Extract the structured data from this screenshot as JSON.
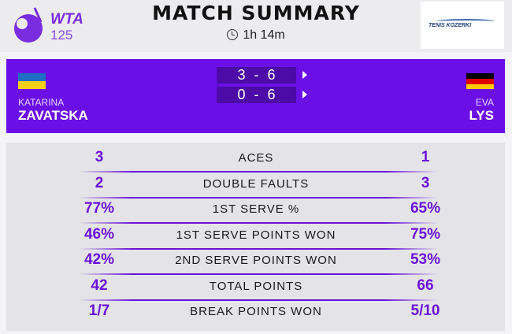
{
  "header": {
    "logo_text": "WTA",
    "logo_tier": "125",
    "title": "MATCH SUMMARY",
    "duration": "1h 14m",
    "clock_icon": "clock-icon",
    "sponsor_logo_text": "TENIS KOZERKI"
  },
  "colors": {
    "accent": "#6a10e6",
    "score_bg": "#4c0aa6",
    "stat_value": "#6a12d8"
  },
  "match": {
    "player1": {
      "first": "KATARINA",
      "last": "ZAVATSKA",
      "flag": "Ukraine"
    },
    "player2": {
      "first": "EVA",
      "last": "LYS",
      "flag": "Germany"
    },
    "sets": [
      "3 - 6",
      "0 - 6"
    ]
  },
  "stats": [
    {
      "label": "ACES",
      "p1": "3",
      "p2": "1"
    },
    {
      "label": "DOUBLE FAULTS",
      "p1": "2",
      "p2": "3"
    },
    {
      "label": "1ST SERVE %",
      "p1": "77%",
      "p2": "65%"
    },
    {
      "label": "1ST SERVE POINTS WON",
      "p1": "46%",
      "p2": "75%"
    },
    {
      "label": "2ND SERVE POINTS WON",
      "p1": "42%",
      "p2": "53%"
    },
    {
      "label": "TOTAL POINTS",
      "p1": "42",
      "p2": "66"
    },
    {
      "label": "BREAK POINTS WON",
      "p1": "1/7",
      "p2": "5/10"
    }
  ]
}
